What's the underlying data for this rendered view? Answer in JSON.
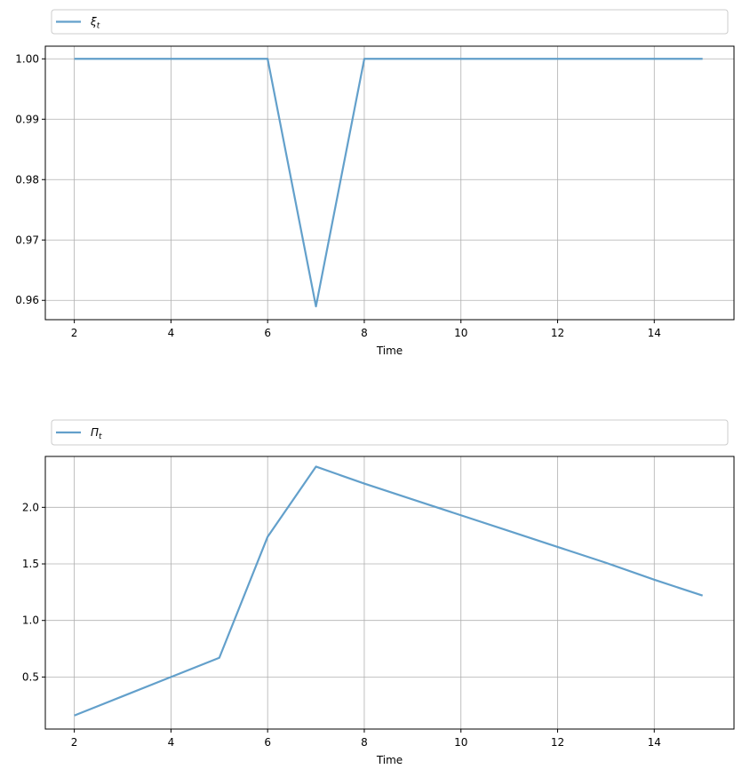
{
  "chart_data": [
    {
      "type": "line",
      "xlabel": "Time",
      "xlim": [
        1.4,
        15.65
      ],
      "ylim": [
        0.9568,
        1.0021
      ],
      "x_ticks": [
        2,
        4,
        6,
        8,
        10,
        12,
        14
      ],
      "y_ticks": [
        0.96,
        0.97,
        0.98,
        0.99,
        1.0
      ],
      "y_tick_labels": [
        "0.96",
        "0.97",
        "0.98",
        "0.99",
        "1.00"
      ],
      "grid": true,
      "legend_position": "above-plot",
      "color": "#5b9bc8",
      "series": [
        {
          "name": "ξ",
          "name_subscript": "t",
          "x": [
            2,
            3,
            4,
            5,
            6,
            7,
            8,
            9,
            10,
            11,
            12,
            13,
            14,
            15
          ],
          "values": [
            1.0,
            1.0,
            1.0,
            1.0,
            1.0,
            0.959,
            1.0,
            1.0,
            1.0,
            1.0,
            1.0,
            1.0,
            1.0,
            1.0
          ]
        }
      ]
    },
    {
      "type": "line",
      "xlabel": "Time",
      "xlim": [
        1.4,
        15.65
      ],
      "ylim": [
        0.04,
        2.45
      ],
      "x_ticks": [
        2,
        4,
        6,
        8,
        10,
        12,
        14
      ],
      "y_ticks": [
        0.5,
        1.0,
        1.5,
        2.0
      ],
      "y_tick_labels": [
        "0.5",
        "1.0",
        "1.5",
        "2.0"
      ],
      "grid": true,
      "legend_position": "above-plot",
      "color": "#5b9bc8",
      "series": [
        {
          "name": "Π",
          "name_subscript": "t",
          "x": [
            2,
            3,
            4,
            5,
            6,
            7,
            8,
            9,
            10,
            11,
            12,
            13,
            14,
            15
          ],
          "values": [
            0.16,
            0.33,
            0.5,
            0.67,
            1.74,
            2.36,
            2.21,
            2.07,
            1.93,
            1.79,
            1.65,
            1.51,
            1.36,
            1.22
          ]
        }
      ]
    }
  ]
}
